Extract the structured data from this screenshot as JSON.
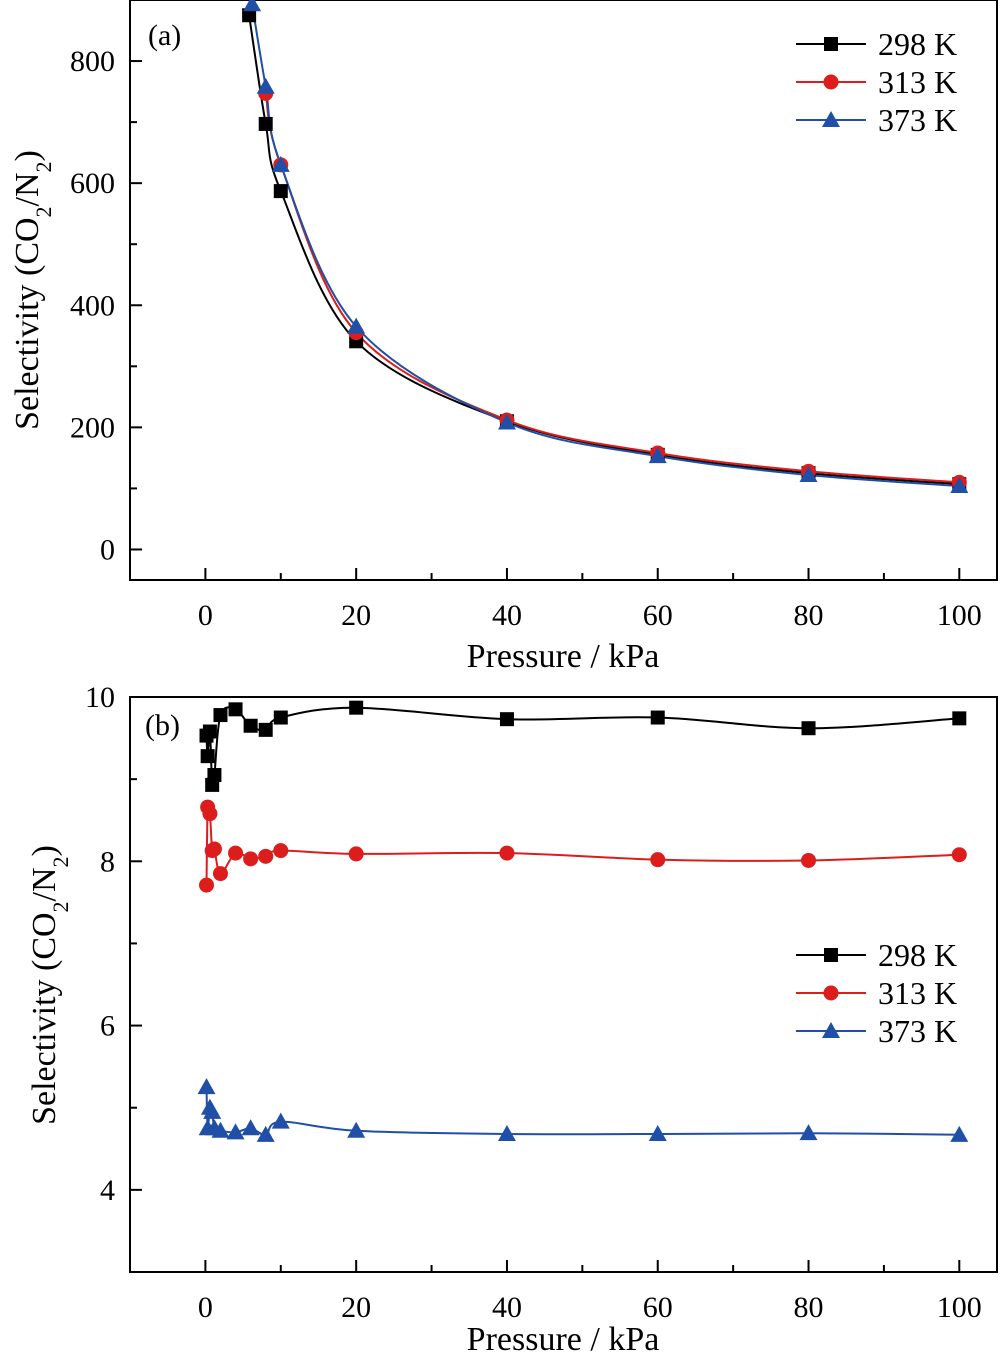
{
  "chart_data": [
    {
      "type": "line",
      "panel_label": "(a)",
      "xlabel": "Pressure / kPa",
      "ylabel_main": "Selectivity (CO",
      "ylabel_sub1": "2",
      "ylabel_mid": "/N",
      "ylabel_sub2": "2",
      "ylabel_end": ")",
      "xlim": [
        -10,
        105
      ],
      "ylim": [
        -50,
        900
      ],
      "xticks": [
        0,
        20,
        40,
        60,
        80,
        100
      ],
      "yticks": [
        0,
        200,
        400,
        600,
        800
      ],
      "xtick_labels": [
        "0",
        "20",
        "40",
        "60",
        "80",
        "100"
      ],
      "ytick_labels": [
        "0",
        "200",
        "400",
        "600",
        "800"
      ],
      "legend_position": "top-right",
      "series": [
        {
          "name": "298 K",
          "color": "#000000",
          "marker": "square",
          "x": [
            5.8,
            8,
            10,
            20,
            40,
            60,
            80,
            100
          ],
          "y": [
            875,
            697,
            587,
            341,
            210,
            155,
            125,
            107
          ],
          "fit_a": 5300,
          "fit_b": -1.5
        },
        {
          "name": "313 K",
          "color": "#dd1c1c",
          "marker": "circle",
          "x": [
            8,
            10,
            20,
            40,
            60,
            80,
            100
          ],
          "y": [
            747,
            630,
            355,
            212,
            158,
            128,
            110
          ]
        },
        {
          "name": "373 K",
          "color": "#1f4fa6",
          "marker": "triangle",
          "x": [
            6.2,
            8,
            10,
            20,
            40,
            60,
            80,
            100
          ],
          "y": [
            893,
            758,
            630,
            365,
            208,
            153,
            122,
            104
          ],
          "fit_a": 5900,
          "fit_b": -0.8
        }
      ]
    },
    {
      "type": "line",
      "panel_label": "(b)",
      "xlabel": "Pressure / kPa",
      "ylabel_main": "Selectivity (CO",
      "ylabel_sub1": "2",
      "ylabel_mid": "/N",
      "ylabel_sub2": "2",
      "ylabel_end": ")",
      "xlim": [
        -10,
        105
      ],
      "ylim": [
        3,
        10
      ],
      "xticks": [
        0,
        20,
        40,
        60,
        80,
        100
      ],
      "yticks": [
        4,
        6,
        8,
        10
      ],
      "xtick_labels": [
        "0",
        "20",
        "40",
        "60",
        "80",
        "100"
      ],
      "ytick_labels": [
        "4",
        "6",
        "8",
        "10"
      ],
      "legend_position": "center-right",
      "series": [
        {
          "name": "298 K",
          "color": "#000000",
          "marker": "square",
          "x": [
            0.15,
            0.3,
            0.6,
            0.9,
            1.2,
            2,
            4,
            6,
            8,
            10,
            20,
            40,
            60,
            80,
            100
          ],
          "y": [
            9.53,
            9.28,
            9.58,
            8.93,
            9.05,
            9.78,
            9.85,
            9.65,
            9.6,
            9.75,
            9.87,
            9.73,
            9.75,
            9.62,
            9.74
          ]
        },
        {
          "name": "313 K",
          "color": "#dd1c1c",
          "marker": "circle",
          "x": [
            0.15,
            0.3,
            0.6,
            0.9,
            1.2,
            2,
            4,
            6,
            8,
            10,
            20,
            40,
            60,
            80,
            100
          ],
          "y": [
            7.71,
            8.66,
            8.58,
            8.13,
            8.15,
            7.85,
            8.1,
            8.03,
            8.06,
            8.13,
            8.09,
            8.1,
            8.02,
            8.01,
            8.08
          ]
        },
        {
          "name": "373 K",
          "color": "#1f4fa6",
          "marker": "triangle",
          "x": [
            0.15,
            0.3,
            0.6,
            0.9,
            1.2,
            2,
            4,
            6,
            8,
            10,
            20,
            40,
            60,
            80,
            100
          ],
          "y": [
            5.25,
            4.75,
            5.0,
            4.95,
            4.75,
            4.72,
            4.7,
            4.75,
            4.67,
            4.83,
            4.72,
            4.68,
            4.68,
            4.69,
            4.67
          ]
        }
      ]
    }
  ]
}
